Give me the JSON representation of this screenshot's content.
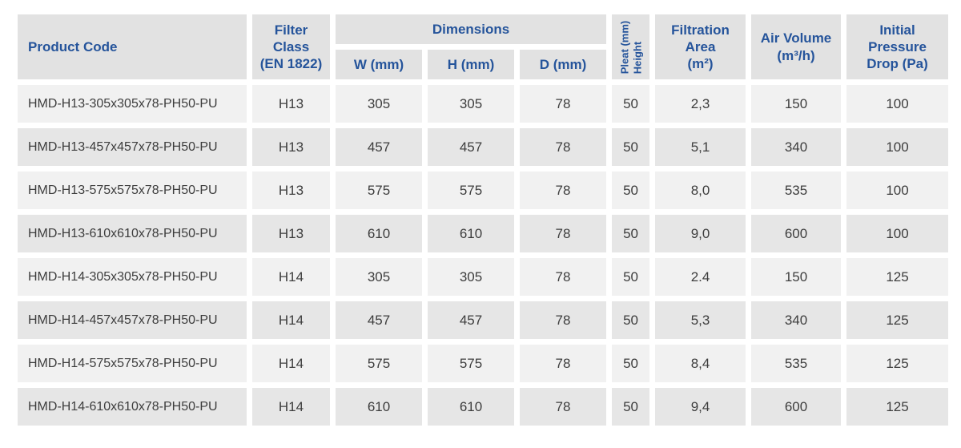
{
  "accent_color": "#25549b",
  "header_bg": "#e2e2e2",
  "row_bg_odd": "#f1f1f1",
  "row_bg_even": "#e6e6e6",
  "table": {
    "headers": {
      "product_code": "Product Code",
      "filter_class_line1": "Filter Class",
      "filter_class_line2": "(EN 1822)",
      "dimensions": "Dimensions",
      "w": "W (mm)",
      "h": "H (mm)",
      "d": "D (mm)",
      "pleat_line1": "Pleat (mm)",
      "pleat_line2": "Height",
      "filtration_line1": "Filtration",
      "filtration_line2": "Area",
      "filtration_line3": "(m²)",
      "air_volume_line1": "Air Volume",
      "air_volume_line2": "(m³/h)",
      "pressure_line1": "Initial Pressure",
      "pressure_line2": "Drop (Pa)"
    },
    "column_keys": [
      "product_code",
      "filter_class",
      "w",
      "h",
      "d",
      "pleat",
      "filtration_area",
      "air_volume",
      "pressure_drop"
    ],
    "rows": [
      {
        "product_code": "HMD-H13-305x305x78-PH50-PU",
        "filter_class": "H13",
        "w": "305",
        "h": "305",
        "d": "78",
        "pleat": "50",
        "filtration_area": "2,3",
        "air_volume": "150",
        "pressure_drop": "100"
      },
      {
        "product_code": "HMD-H13-457x457x78-PH50-PU",
        "filter_class": "H13",
        "w": "457",
        "h": "457",
        "d": "78",
        "pleat": "50",
        "filtration_area": "5,1",
        "air_volume": "340",
        "pressure_drop": "100"
      },
      {
        "product_code": "HMD-H13-575x575x78-PH50-PU",
        "filter_class": "H13",
        "w": "575",
        "h": "575",
        "d": "78",
        "pleat": "50",
        "filtration_area": "8,0",
        "air_volume": "535",
        "pressure_drop": "100"
      },
      {
        "product_code": "HMD-H13-610x610x78-PH50-PU",
        "filter_class": "H13",
        "w": "610",
        "h": "610",
        "d": "78",
        "pleat": "50",
        "filtration_area": "9,0",
        "air_volume": "600",
        "pressure_drop": "100"
      },
      {
        "product_code": "HMD-H14-305x305x78-PH50-PU",
        "filter_class": "H14",
        "w": "305",
        "h": "305",
        "d": "78",
        "pleat": "50",
        "filtration_area": "2.4",
        "air_volume": "150",
        "pressure_drop": "125"
      },
      {
        "product_code": "HMD-H14-457x457x78-PH50-PU",
        "filter_class": "H14",
        "w": "457",
        "h": "457",
        "d": "78",
        "pleat": "50",
        "filtration_area": "5,3",
        "air_volume": "340",
        "pressure_drop": "125"
      },
      {
        "product_code": "HMD-H14-575x575x78-PH50-PU",
        "filter_class": "H14",
        "w": "575",
        "h": "575",
        "d": "78",
        "pleat": "50",
        "filtration_area": "8,4",
        "air_volume": "535",
        "pressure_drop": "125"
      },
      {
        "product_code": "HMD-H14-610x610x78-PH50-PU",
        "filter_class": "H14",
        "w": "610",
        "h": "610",
        "d": "78",
        "pleat": "50",
        "filtration_area": "9,4",
        "air_volume": "600",
        "pressure_drop": "125"
      }
    ]
  }
}
